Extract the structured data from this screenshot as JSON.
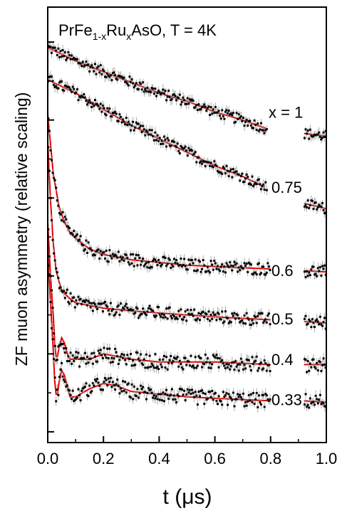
{
  "chart_data": {
    "type": "scatter",
    "title_parts": {
      "t1": "PrFe",
      "s1": "1-x",
      "t2": "Ru",
      "s2": "x",
      "t3": "AsO, T = 4K"
    },
    "xlabel": "t (μs)",
    "ylabel": "ZF muon asymmetry (relative scaling)",
    "xlim": [
      0.0,
      1.0
    ],
    "xticks": [
      "0.0",
      "0.2",
      "0.4",
      "0.6",
      "0.8",
      "1.0"
    ],
    "fit_color": "#e00000",
    "data_color": "#000000",
    "series": [
      {
        "name": "x = 1",
        "y0": 95,
        "fit": [
          [
            0,
            95
          ],
          [
            0.1,
            90
          ],
          [
            0.2,
            86
          ],
          [
            0.3,
            82
          ],
          [
            0.4,
            78
          ],
          [
            0.5,
            75
          ],
          [
            0.6,
            71
          ],
          [
            0.7,
            68
          ],
          [
            0.78,
            65
          ]
        ],
        "noise": 2.5,
        "gap": [
          0.79,
          0.92
        ],
        "tail": [
          [
            0.92,
            63
          ],
          [
            1.0,
            62
          ]
        ]
      },
      {
        "name": "0.75",
        "y0": 83,
        "fit": [
          [
            0,
            83
          ],
          [
            0.1,
            78
          ],
          [
            0.2,
            72
          ],
          [
            0.3,
            66
          ],
          [
            0.4,
            61
          ],
          [
            0.5,
            56
          ],
          [
            0.6,
            51
          ],
          [
            0.7,
            47
          ],
          [
            0.78,
            43
          ]
        ],
        "noise": 2.5,
        "gap": [
          0.79,
          0.92
        ],
        "tail": [
          [
            0.92,
            37
          ],
          [
            1.0,
            35
          ]
        ]
      },
      {
        "name": "0.6",
        "y0": 70,
        "fit": [
          [
            0,
            70
          ],
          [
            0.02,
            48
          ],
          [
            0.04,
            36
          ],
          [
            0.06,
            30
          ],
          [
            0.08,
            26
          ],
          [
            0.1,
            24
          ],
          [
            0.15,
            20
          ],
          [
            0.2,
            18
          ],
          [
            0.3,
            16
          ],
          [
            0.4,
            15
          ],
          [
            0.5,
            14
          ],
          [
            0.6,
            13.5
          ],
          [
            0.7,
            13
          ],
          [
            0.8,
            12.6
          ]
        ],
        "noise": 3,
        "gap": [
          0.8,
          0.92
        ],
        "tail": [
          [
            0.92,
            11.9
          ],
          [
            1.0,
            11.5
          ]
        ]
      },
      {
        "name": "0.5",
        "y0": 60,
        "fit": [
          [
            0,
            60
          ],
          [
            0.01,
            38
          ],
          [
            0.02,
            22
          ],
          [
            0.03,
            12
          ],
          [
            0.04,
            8
          ],
          [
            0.05,
            5
          ],
          [
            0.06,
            3.5
          ],
          [
            0.08,
            1.5
          ],
          [
            0.1,
            0
          ],
          [
            0.15,
            -1
          ],
          [
            0.2,
            -2
          ],
          [
            0.3,
            -3
          ],
          [
            0.4,
            -3.8
          ],
          [
            0.5,
            -4.5
          ],
          [
            0.6,
            -5.2
          ],
          [
            0.7,
            -5.8
          ],
          [
            0.8,
            -6.3
          ]
        ],
        "noise": 3,
        "gap": [
          0.8,
          0.92
        ],
        "tail": [
          [
            0.92,
            -7
          ],
          [
            1.0,
            -7.5
          ]
        ]
      },
      {
        "name": "0.4",
        "y0": 30,
        "fit": [
          [
            0,
            30
          ],
          [
            0.01,
            10
          ],
          [
            0.02,
            -5
          ],
          [
            0.025,
            -15
          ],
          [
            0.03,
            -20
          ],
          [
            0.035,
            -20
          ],
          [
            0.04,
            -17
          ],
          [
            0.05,
            -13
          ],
          [
            0.06,
            -15
          ],
          [
            0.07,
            -19
          ],
          [
            0.08,
            -21
          ],
          [
            0.1,
            -21
          ],
          [
            0.15,
            -21
          ],
          [
            0.2,
            -19
          ],
          [
            0.25,
            -20
          ],
          [
            0.3,
            -21
          ],
          [
            0.4,
            -22
          ],
          [
            0.5,
            -22
          ],
          [
            0.6,
            -22
          ],
          [
            0.7,
            -22.5
          ],
          [
            0.8,
            -23
          ]
        ],
        "noise": 3.5,
        "gap": [
          0.8,
          0.92
        ],
        "tail": [
          [
            0.92,
            -23
          ],
          [
            1.0,
            -23
          ]
        ]
      },
      {
        "name": "0.33",
        "y0": 20,
        "fit": [
          [
            0,
            20
          ],
          [
            0.01,
            0
          ],
          [
            0.02,
            -18
          ],
          [
            0.025,
            -29
          ],
          [
            0.03,
            -34
          ],
          [
            0.035,
            -34
          ],
          [
            0.04,
            -30
          ],
          [
            0.05,
            -25
          ],
          [
            0.06,
            -27
          ],
          [
            0.07,
            -31
          ],
          [
            0.08,
            -35
          ],
          [
            0.1,
            -35
          ],
          [
            0.15,
            -32
          ],
          [
            0.2,
            -30
          ],
          [
            0.25,
            -31
          ],
          [
            0.3,
            -33
          ],
          [
            0.4,
            -34
          ],
          [
            0.5,
            -35
          ],
          [
            0.6,
            -35.5
          ],
          [
            0.7,
            -36
          ],
          [
            0.8,
            -36.5
          ]
        ],
        "noise": 3.5,
        "gap": [
          0.8,
          0.92
        ],
        "tail": [
          [
            0.92,
            -36.5
          ],
          [
            1.0,
            -37
          ]
        ]
      }
    ],
    "ylim": [
      -52,
      110
    ],
    "yticks": [
      97,
      68,
      39,
      10,
      -19,
      -48
    ],
    "labels_at_y": [
      71,
      43,
      12,
      -6,
      -21,
      -36
    ]
  }
}
